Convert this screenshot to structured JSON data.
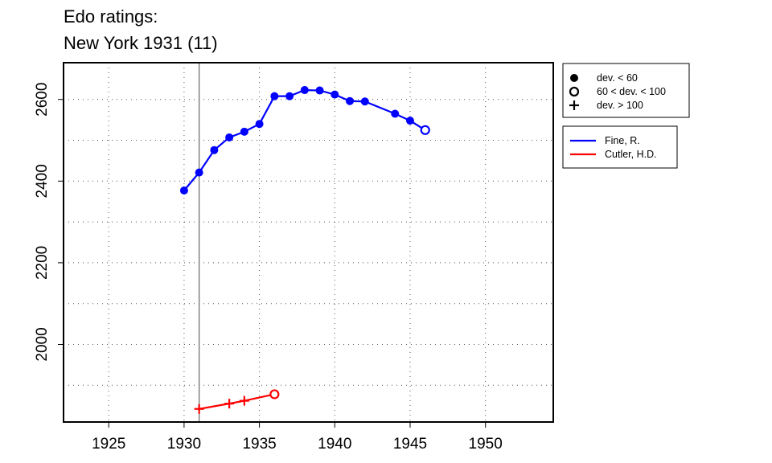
{
  "title": {
    "line1": "Edo ratings:",
    "line2": "New York 1931 (11)"
  },
  "legend_markers": [
    {
      "symbol": "filled-circle",
      "label": "dev. < 60"
    },
    {
      "symbol": "open-circle",
      "label": "60 < dev. < 100"
    },
    {
      "symbol": "plus",
      "label": "dev. > 100"
    }
  ],
  "legend_players": [
    {
      "name": "Fine, R.",
      "color": "#0000ff"
    },
    {
      "name": "Cutler, H.D.",
      "color": "#ff0000"
    }
  ],
  "chart_data": {
    "type": "line",
    "title": "Edo ratings: New York 1931 (11)",
    "xlabel": "",
    "ylabel": "",
    "xlim": [
      1922,
      1954.5
    ],
    "ylim": [
      1810,
      2690
    ],
    "x_ticks": [
      1925,
      1930,
      1935,
      1940,
      1945,
      1950
    ],
    "y_ticks": [
      2000,
      2200,
      2400,
      2600
    ],
    "grid": true,
    "event_year": 1931,
    "legend_position": "right, outside plot",
    "series": [
      {
        "name": "Fine, R.",
        "color": "#0000ff",
        "points": [
          {
            "x": 1930,
            "y": 2377,
            "marker": "filled-circle"
          },
          {
            "x": 1931,
            "y": 2421,
            "marker": "filled-circle"
          },
          {
            "x": 1932,
            "y": 2476,
            "marker": "filled-circle"
          },
          {
            "x": 1933,
            "y": 2507,
            "marker": "filled-circle"
          },
          {
            "x": 1934,
            "y": 2521,
            "marker": "filled-circle"
          },
          {
            "x": 1935,
            "y": 2540,
            "marker": "filled-circle"
          },
          {
            "x": 1936,
            "y": 2608,
            "marker": "filled-circle"
          },
          {
            "x": 1937,
            "y": 2608,
            "marker": "filled-circle"
          },
          {
            "x": 1938,
            "y": 2623,
            "marker": "filled-circle"
          },
          {
            "x": 1939,
            "y": 2622,
            "marker": "filled-circle"
          },
          {
            "x": 1940,
            "y": 2612,
            "marker": "filled-circle"
          },
          {
            "x": 1941,
            "y": 2596,
            "marker": "filled-circle"
          },
          {
            "x": 1942,
            "y": 2595,
            "marker": "filled-circle"
          },
          {
            "x": 1944,
            "y": 2565,
            "marker": "filled-circle"
          },
          {
            "x": 1945,
            "y": 2548,
            "marker": "filled-circle"
          },
          {
            "x": 1946,
            "y": 2525,
            "marker": "open-circle"
          }
        ]
      },
      {
        "name": "Cutler, H.D.",
        "color": "#ff0000",
        "points": [
          {
            "x": 1931,
            "y": 1842,
            "marker": "plus"
          },
          {
            "x": 1933,
            "y": 1855,
            "marker": "plus"
          },
          {
            "x": 1934,
            "y": 1862,
            "marker": "plus"
          },
          {
            "x": 1936,
            "y": 1878,
            "marker": "open-circle"
          }
        ]
      }
    ]
  }
}
